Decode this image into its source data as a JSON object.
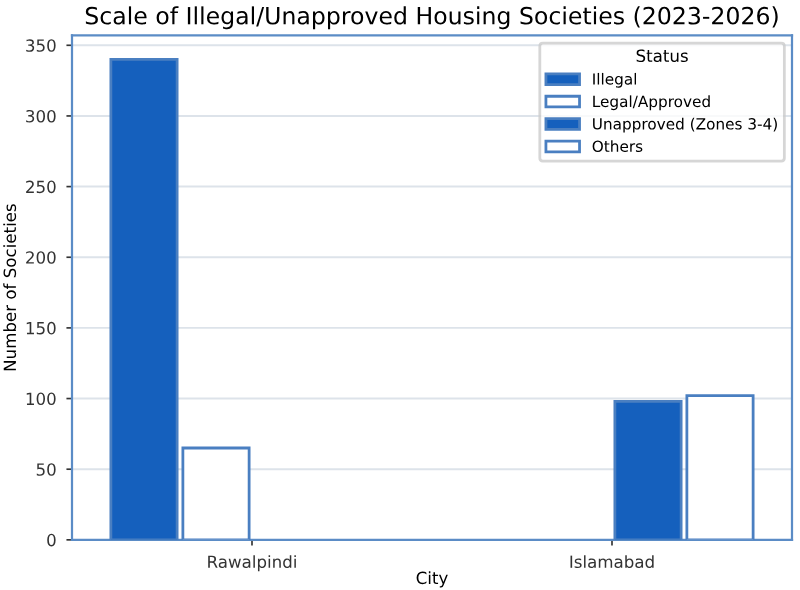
{
  "chart_data": {
    "type": "bar",
    "title": "Scale of Illegal/Unapproved Housing Societies (2023-2026)",
    "xlabel": "City",
    "ylabel": "Number of Societies",
    "legend_title": "Status",
    "categories": [
      "Rawalpindi",
      "Islamabad"
    ],
    "series": [
      {
        "name": "Illegal",
        "color": "#1560bd",
        "values": [
          340,
          null
        ]
      },
      {
        "name": "Legal/Approved",
        "color": "#ffffff",
        "values": [
          65,
          null
        ]
      },
      {
        "name": "Unapproved (Zones 3-4)",
        "color": "#1560bd",
        "values": [
          null,
          98
        ]
      },
      {
        "name": "Others",
        "color": "#ffffff",
        "values": [
          null,
          102
        ]
      }
    ],
    "ylim": [
      0,
      357
    ],
    "yticks": [
      0,
      50,
      100,
      150,
      200,
      250,
      300,
      350
    ],
    "grid": "y",
    "legend": "top right"
  }
}
